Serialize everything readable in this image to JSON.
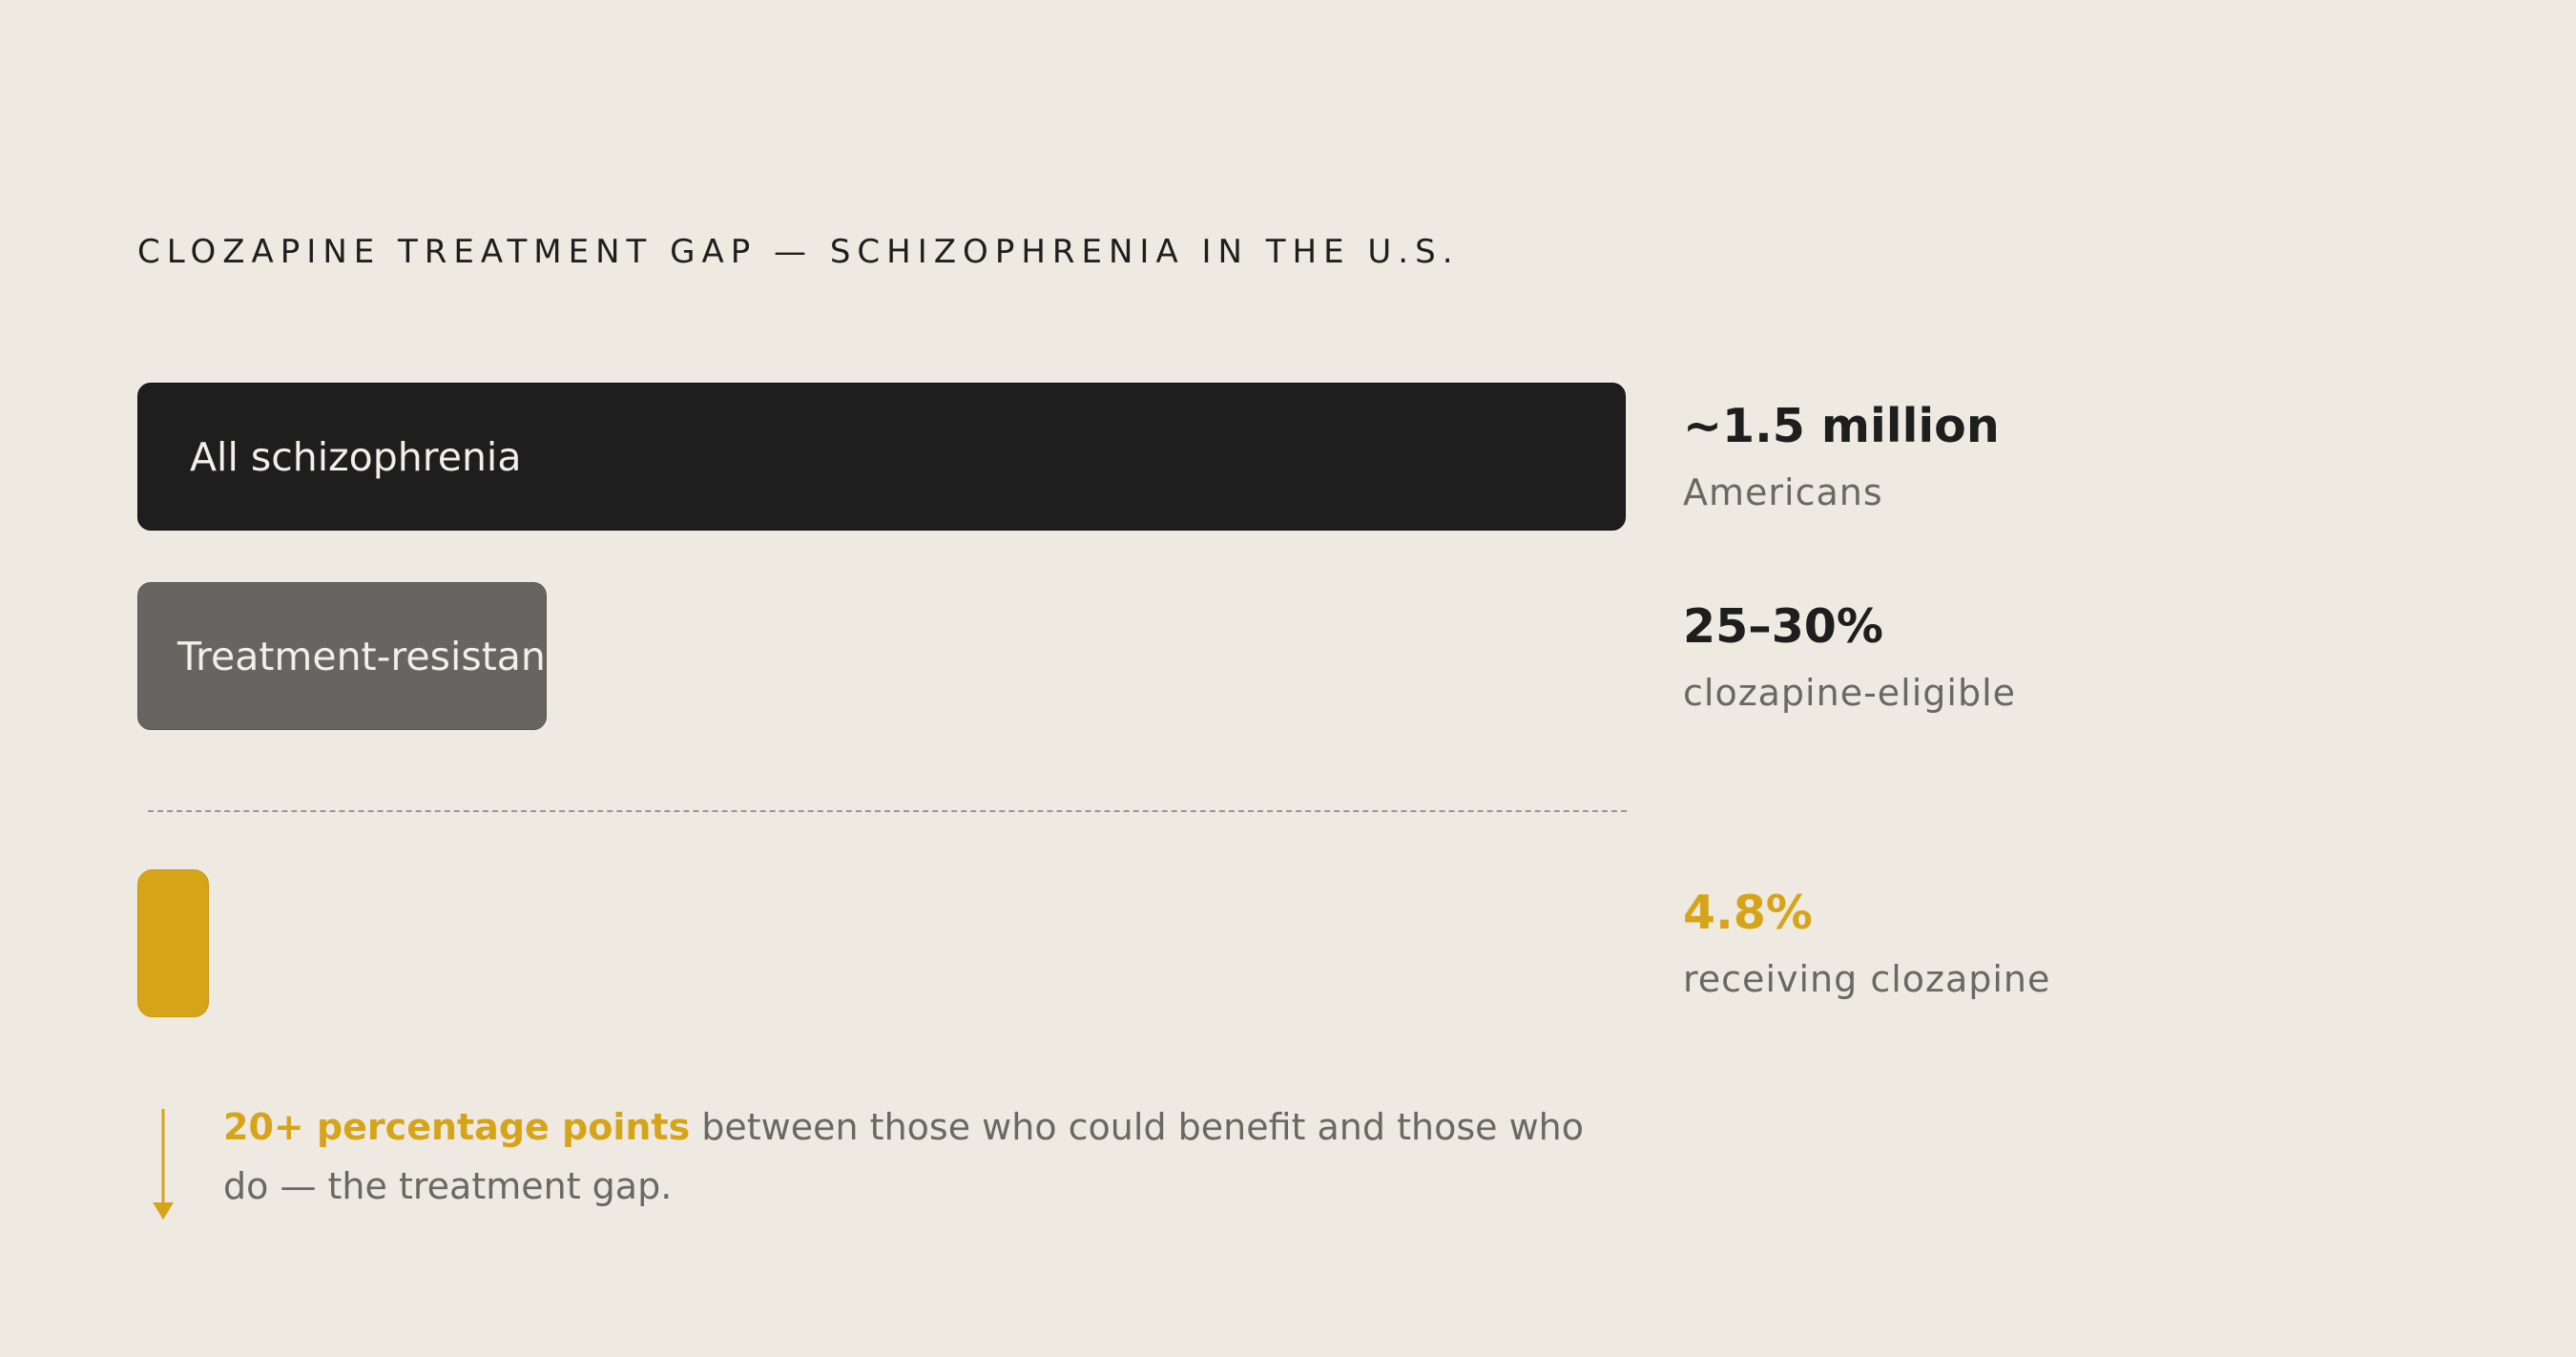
{
  "colors": {
    "background": "#eeeae2",
    "dark_bar": "#1e1e1e",
    "gray_bar": "#676562",
    "accent": "#d6a419",
    "muted_text": "#6a6864"
  },
  "chart_data": {
    "type": "bar",
    "orientation": "horizontal",
    "title": "CLOZAPINE TREATMENT GAP — SCHIZOPHRENIA IN THE U.S.",
    "bars": [
      {
        "label": "All schizophrenia",
        "relative_value": 100,
        "stat_value": "~1.5 million",
        "stat_sub": "Americans",
        "color": "#1e1e1e"
      },
      {
        "label": "Treatment-resistant",
        "relative_value": 27.5,
        "stat_value": "25–30%",
        "stat_sub": "clozapine-eligible",
        "color": "#676562"
      },
      {
        "label": "",
        "relative_value": 4.8,
        "stat_value": "4.8%",
        "stat_sub": "receiving clozapine",
        "color": "#d6a419"
      }
    ],
    "divider": "dashed, between eligible and receiving",
    "annotation": {
      "highlight": "20+ percentage points",
      "text": " between those who could benefit and those who do — the treatment gap."
    }
  }
}
